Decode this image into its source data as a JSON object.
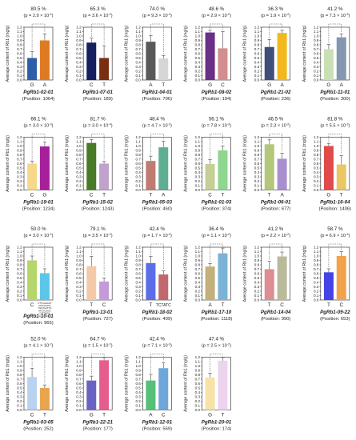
{
  "figure": {
    "ylabel": "Average content of Rb1 (mg/g)",
    "yticks": [
      "0.0",
      "0.1",
      "0.2",
      "0.3",
      "0.4",
      "0.5",
      "0.6",
      "0.7",
      "0.8",
      "0.9",
      "1.0",
      "1.1",
      "1.2"
    ]
  },
  "chart_data": [
    {
      "type": "bar",
      "gene": "PgRb1-02-01",
      "position_label": "(Position: 1064)",
      "percent": "80.5 %",
      "p": "2.9 × 10",
      "p_exp": "-4",
      "categories": [
        "G",
        "A"
      ],
      "values": [
        0.5,
        0.9
      ],
      "errors": [
        0.15,
        0.15
      ],
      "colors": [
        "#2f5ea8",
        "#e07a22"
      ],
      "ylim": [
        0,
        1.2
      ]
    },
    {
      "type": "bar",
      "gene": "PgRb1-07-01",
      "position_label": "(Position: 189)",
      "percent": "65.3 %",
      "p": "3.6 × 10",
      "p_exp": "-2",
      "categories": [
        "C",
        "T"
      ],
      "values": [
        0.85,
        0.5
      ],
      "errors": [
        0.1,
        0.28
      ],
      "colors": [
        "#16205f",
        "#7a2e10"
      ],
      "ylim": [
        0,
        1.2
      ]
    },
    {
      "type": "bar",
      "gene": "PgRb1-04-01",
      "position_label": "(Position: 706)",
      "percent": "74.0 %",
      "p": "9.3 × 10",
      "p_exp": "-4",
      "categories": [
        "A",
        "T"
      ],
      "values": [
        0.87,
        0.49
      ],
      "errors": [
        0.14,
        0.07
      ],
      "colors": [
        "#595959",
        "#d6d6d6"
      ],
      "ylim": [
        0,
        1.2
      ]
    },
    {
      "type": "bar",
      "gene": "PgRb1-08-02",
      "position_label": "(Position: 194)",
      "percent": "48.6 %",
      "p": "2.9 × 10",
      "p_exp": "-2",
      "categories": [
        "G",
        "C"
      ],
      "values": [
        1.08,
        0.72
      ],
      "errors": [
        0.05,
        0.38
      ],
      "colors": [
        "#6a2f86",
        "#d28d8e"
      ],
      "ylim": [
        0,
        1.2
      ]
    },
    {
      "type": "bar",
      "gene": "PgRb1-21-02",
      "position_label": "(Position: 236)",
      "percent": "36.3 %",
      "p": "1.9 × 10",
      "p_exp": "-2",
      "categories": [
        "G",
        "A"
      ],
      "values": [
        0.75,
        1.07
      ],
      "errors": [
        0.17,
        0.06
      ],
      "colors": [
        "#3f4f7a",
        "#f3b81c"
      ],
      "ylim": [
        0,
        1.2
      ]
    },
    {
      "type": "bar",
      "gene": "PgRb1-11-01",
      "position_label": "(Position: 300)",
      "percent": "41.2 %",
      "p": "7.3 × 10",
      "p_exp": "-3",
      "categories": [
        "G",
        "A"
      ],
      "values": [
        0.7,
        0.97
      ],
      "errors": [
        0.11,
        0.08
      ],
      "colors": [
        "#c9e0b5",
        "#8497b0"
      ],
      "ylim": [
        0,
        1.2
      ]
    },
    {
      "type": "bar",
      "gene": "PgRb1-19-01",
      "position_label": "(Position: 1234)",
      "percent": "66.1 %",
      "p": "3.0 × 10",
      "p_exp": "-3",
      "categories": [
        "C",
        "G"
      ],
      "values": [
        0.6,
        0.99
      ],
      "errors": [
        0.06,
        0.1
      ],
      "colors": [
        "#f6d88b",
        "#a6209c"
      ],
      "ylim": [
        0,
        1.2
      ]
    },
    {
      "type": "bar",
      "gene": "PgRb1-15-02",
      "position_label": "(Position: 1243)",
      "percent": "81.7 %",
      "p": "3.0 × 10",
      "p_exp": "-4",
      "categories": [
        "C",
        "T"
      ],
      "values": [
        1.07,
        0.6
      ],
      "errors": [
        0.08,
        0.05
      ],
      "colors": [
        "#4a7a28",
        "#c0a3cc"
      ],
      "ylim": [
        0,
        1.2
      ]
    },
    {
      "type": "bar",
      "gene": "PgRb1-05-03",
      "position_label": "(Position: 460)",
      "percent": "48.4 %",
      "p": "4.7 × 10",
      "p_exp": "-2",
      "categories": [
        "T",
        "A"
      ],
      "values": [
        0.66,
        0.97
      ],
      "errors": [
        0.11,
        0.14
      ],
      "colors": [
        "#c07c73",
        "#5fae92"
      ],
      "ylim": [
        0,
        1.2
      ]
    },
    {
      "type": "bar",
      "gene": "PgRb1-01-03",
      "position_label": "(Position: 374)",
      "percent": "56.1 %",
      "p": "7.8 × 10",
      "p_exp": "-3",
      "categories": [
        "C",
        "T"
      ],
      "values": [
        0.59,
        0.9
      ],
      "errors": [
        0.1,
        0.1
      ],
      "colors": [
        "#c5cf94",
        "#8fd68e"
      ],
      "ylim": [
        0,
        1.2
      ]
    },
    {
      "type": "bar",
      "gene": "PgRb1-06-01",
      "position_label": "(Position: 677)",
      "percent": "46.5 %",
      "p": "2.3 × 10",
      "p_exp": "-2",
      "categories": [
        "T",
        "A"
      ],
      "values": [
        1.04,
        0.71
      ],
      "errors": [
        0.1,
        0.13
      ],
      "colors": [
        "#b3c77b",
        "#a98fcf"
      ],
      "ylim": [
        0,
        1.2
      ]
    },
    {
      "type": "bar",
      "gene": "PgRb1-16-04",
      "position_label": "(Position: 1406)",
      "percent": "81.8 %",
      "p": "5.5 × 10",
      "p_exp": "-3",
      "categories": [
        "G",
        "T"
      ],
      "values": [
        1.0,
        0.58
      ],
      "errors": [
        0.06,
        0.2
      ],
      "colors": [
        "#e04a4a",
        "#e8c764"
      ],
      "ylim": [
        0,
        1.2
      ]
    },
    {
      "type": "bar",
      "gene": "PgRb1-10-01",
      "position_label": "(Position: 965)",
      "percent": "50.0 %",
      "p": "3.0 × 10",
      "p_exp": "-2",
      "categories": [
        "C",
        "CTTGGAAG"
      ],
      "values": [
        0.9,
        0.61
      ],
      "errors": [
        0.1,
        0.1
      ],
      "colors": [
        "#b4d66a",
        "#5cc6e8"
      ],
      "ylim": [
        0,
        1.2
      ],
      "xlabel_long": [
        "CTTGGAAGT",
        "GGCCATTA",
        "TGGTCATTG",
        "ATGTCAGG",
        "CATTAGG"
      ]
    },
    {
      "type": "bar",
      "gene": "PgRb1-13-01",
      "position_label": "(Position: 727)",
      "percent": "79.1 %",
      "p": "3.5 × 10",
      "p_exp": "-2",
      "categories": [
        "T",
        "C"
      ],
      "values": [
        0.77,
        0.42
      ],
      "errors": [
        0.22,
        0.08
      ],
      "colors": [
        "#f4c9a8",
        "#c59ad8"
      ],
      "ylim": [
        0,
        1.2
      ]
    },
    {
      "type": "bar",
      "gene": "PgRb1-18-02",
      "position_label": "(Position: 409)",
      "percent": "42.4 %",
      "p": "1.7 × 10",
      "p_exp": "-2",
      "categories": [
        "T",
        "TCTATC"
      ],
      "values": [
        0.84,
        0.58
      ],
      "errors": [
        0.15,
        0.08
      ],
      "colors": [
        "#5b6ee8",
        "#c0686e"
      ],
      "ylim": [
        0,
        1.2
      ]
    },
    {
      "type": "bar",
      "gene": "PgRb1-17-10",
      "position_label": "(Position: 1118)",
      "percent": "36.4 %",
      "p": "1.1 × 10",
      "p_exp": "-2",
      "categories": [
        "A",
        "T"
      ],
      "values": [
        0.76,
        1.06
      ],
      "errors": [
        0.07,
        0.12
      ],
      "colors": [
        "#c3b07a",
        "#7ab3d6"
      ],
      "ylim": [
        0,
        1.2
      ]
    },
    {
      "type": "bar",
      "gene": "PgRb1-14-04",
      "position_label": "(Position: 990)",
      "percent": "41.2 %",
      "p": "2.2 × 10",
      "p_exp": "-2",
      "categories": [
        "T",
        "C"
      ],
      "values": [
        0.7,
        0.99
      ],
      "errors": [
        0.18,
        0.1
      ],
      "colors": [
        "#de8d92",
        "#b9ba9a"
      ],
      "ylim": [
        0,
        1.2
      ]
    },
    {
      "type": "bar",
      "gene": "PgRb1-09-22",
      "position_label": "(Position: 653)",
      "percent": "58.7 %",
      "p": "6.9 × 10",
      "p_exp": "-3",
      "categories": [
        "T",
        "C"
      ],
      "values": [
        0.63,
        1.0
      ],
      "errors": [
        0.08,
        0.1
      ],
      "colors": [
        "#4343e6",
        "#f2a24a"
      ],
      "ylim": [
        0,
        1.2
      ]
    },
    {
      "type": "bar",
      "gene": "PgRb1-03-05",
      "position_label": "(Position: 252)",
      "percent": "52.0 %",
      "p": "4.1 × 10",
      "p_exp": "-2",
      "categories": [
        "C",
        "T"
      ],
      "values": [
        0.75,
        0.5
      ],
      "errors": [
        0.2,
        0.07
      ],
      "colors": [
        "#b9d2ef",
        "#e8a54e"
      ],
      "ylim": [
        0,
        1.2
      ]
    },
    {
      "type": "bar",
      "gene": "PgRb1-22-21",
      "position_label": "(Position: 177)",
      "percent": "64.7 %",
      "p": "1.5 × 10",
      "p_exp": "-2",
      "categories": [
        "G",
        "T"
      ],
      "values": [
        0.67,
        1.13
      ],
      "errors": [
        0.1,
        0.1
      ],
      "colors": [
        "#6b63c4",
        "#e65c8d"
      ],
      "ylim": [
        0,
        1.2
      ]
    },
    {
      "type": "bar",
      "gene": "PgRb1-12-01",
      "position_label": "(Position: 569)",
      "percent": "42.4 %",
      "p": "7.1 × 10",
      "p_exp": "-3",
      "categories": [
        "A",
        "C"
      ],
      "values": [
        0.67,
        0.95
      ],
      "errors": [
        0.14,
        0.12
      ],
      "colors": [
        "#55c078",
        "#6da7d9"
      ],
      "ylim": [
        0,
        1.2
      ]
    },
    {
      "type": "bar",
      "gene": "PgRb1-20-01",
      "position_label": "(Position: 174)",
      "percent": "47.4 %",
      "p": "2.5 × 10",
      "p_exp": "-2",
      "categories": [
        "G",
        "T"
      ],
      "values": [
        0.74,
        1.12
      ],
      "errors": [
        0.1,
        0.1
      ],
      "colors": [
        "#f7e3a7",
        "#ecd3ee"
      ],
      "ylim": [
        0,
        1.2
      ]
    }
  ]
}
